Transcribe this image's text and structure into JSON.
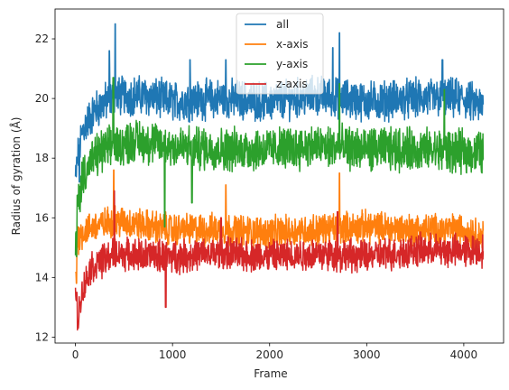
{
  "chart_data": {
    "type": "line",
    "title": "",
    "xlabel": "Frame",
    "ylabel": "Radius of gyration (Å)",
    "xlim": [
      -210,
      4410
    ],
    "ylim": [
      11.8,
      23.0
    ],
    "xticks": [
      0,
      1000,
      2000,
      3000,
      4000
    ],
    "yticks": [
      12,
      14,
      16,
      18,
      20,
      22
    ],
    "grid": false,
    "legend_position": "top-center",
    "x_range": [
      0,
      4200
    ],
    "series": [
      {
        "name": "all",
        "color": "#1f77b4",
        "base": [
          [
            0,
            17.3
          ],
          [
            30,
            18.2
          ],
          [
            80,
            19.0
          ],
          [
            200,
            19.6
          ],
          [
            400,
            20.1
          ],
          [
            700,
            20.1
          ],
          [
            1000,
            19.9
          ],
          [
            1500,
            20.0
          ],
          [
            2000,
            19.9
          ],
          [
            2500,
            20.1
          ],
          [
            3000,
            19.9
          ],
          [
            3500,
            20.0
          ],
          [
            4000,
            20.0
          ],
          [
            4200,
            19.7
          ]
        ],
        "noise": 0.55,
        "spikes": [
          [
            410,
            22.5
          ],
          [
            2720,
            22.2
          ],
          [
            350,
            21.6
          ],
          [
            1180,
            21.3
          ],
          [
            1550,
            21.3
          ],
          [
            2650,
            21.7
          ],
          [
            3780,
            21.3
          ],
          [
            40,
            17.2
          ]
        ]
      },
      {
        "name": "x-axis",
        "color": "#ff7f0e",
        "base": [
          [
            0,
            14.0
          ],
          [
            20,
            15.3
          ],
          [
            100,
            15.6
          ],
          [
            400,
            15.9
          ],
          [
            1000,
            15.6
          ],
          [
            1500,
            15.6
          ],
          [
            2000,
            15.5
          ],
          [
            2500,
            15.6
          ],
          [
            3000,
            15.7
          ],
          [
            3500,
            15.6
          ],
          [
            4000,
            15.6
          ],
          [
            4200,
            15.4
          ]
        ],
        "noise": 0.45,
        "spikes": [
          [
            395,
            17.6
          ],
          [
            2720,
            17.5
          ],
          [
            1550,
            17.1
          ],
          [
            10,
            13.8
          ],
          [
            4190,
            15.0
          ]
        ]
      },
      {
        "name": "y-axis",
        "color": "#2ca02c",
        "base": [
          [
            0,
            14.8
          ],
          [
            20,
            16.4
          ],
          [
            80,
            17.5
          ],
          [
            250,
            18.2
          ],
          [
            600,
            18.6
          ],
          [
            1000,
            18.4
          ],
          [
            1500,
            18.3
          ],
          [
            2000,
            18.3
          ],
          [
            2500,
            18.4
          ],
          [
            3000,
            18.3
          ],
          [
            3500,
            18.3
          ],
          [
            4000,
            18.2
          ],
          [
            4200,
            18.2
          ]
        ],
        "noise": 0.6,
        "spikes": [
          [
            390,
            20.7
          ],
          [
            2720,
            20.5
          ],
          [
            920,
            15.7
          ],
          [
            1200,
            16.5
          ],
          [
            10,
            14.7
          ],
          [
            3800,
            20.3
          ]
        ]
      },
      {
        "name": "z-axis",
        "color": "#d62728",
        "base": [
          [
            0,
            13.6
          ],
          [
            25,
            12.6
          ],
          [
            60,
            13.4
          ],
          [
            150,
            14.3
          ],
          [
            400,
            14.8
          ],
          [
            1000,
            14.7
          ],
          [
            1500,
            14.8
          ],
          [
            2000,
            14.7
          ],
          [
            2500,
            14.8
          ],
          [
            3000,
            14.7
          ],
          [
            3500,
            14.9
          ],
          [
            4000,
            14.9
          ],
          [
            4200,
            14.9
          ]
        ],
        "noise": 0.45,
        "spikes": [
          [
            25,
            12.4
          ],
          [
            930,
            13.0
          ],
          [
            400,
            16.9
          ],
          [
            2700,
            16.2
          ],
          [
            1500,
            16.0
          ]
        ]
      }
    ]
  }
}
